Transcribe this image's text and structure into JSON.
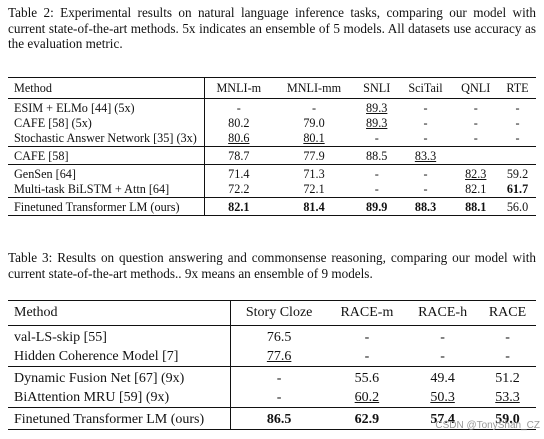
{
  "table2": {
    "caption": "Table 2: Experimental results on natural language inference tasks, comparing our model with current state-of-the-art methods. 5x indicates an ensemble of 5 models. All datasets use accuracy as the evaluation metric.",
    "headers": [
      "Method",
      "MNLI-m",
      "MNLI-mm",
      "SNLI",
      "SciTail",
      "QNLI",
      "RTE"
    ],
    "groups": [
      [
        {
          "method": "ESIM + ELMo [44] (5x)",
          "cells": [
            {
              "v": "-"
            },
            {
              "v": "-"
            },
            {
              "v": "89.3",
              "u": true
            },
            {
              "v": "-"
            },
            {
              "v": "-"
            },
            {
              "v": "-"
            }
          ]
        },
        {
          "method": "CAFE [58] (5x)",
          "cells": [
            {
              "v": "80.2"
            },
            {
              "v": "79.0"
            },
            {
              "v": "89.3",
              "u": true
            },
            {
              "v": "-"
            },
            {
              "v": "-"
            },
            {
              "v": "-"
            }
          ]
        },
        {
          "method": "Stochastic Answer Network [35] (3x)",
          "cells": [
            {
              "v": "80.6",
              "u": true
            },
            {
              "v": "80.1",
              "u": true
            },
            {
              "v": "-"
            },
            {
              "v": "-"
            },
            {
              "v": "-"
            },
            {
              "v": "-"
            }
          ]
        }
      ],
      [
        {
          "method": "CAFE [58]",
          "cells": [
            {
              "v": "78.7"
            },
            {
              "v": "77.9"
            },
            {
              "v": "88.5"
            },
            {
              "v": "83.3",
              "u": true
            },
            {
              "v": ""
            },
            {
              "v": ""
            }
          ]
        }
      ],
      [
        {
          "method": "GenSen [64]",
          "cells": [
            {
              "v": "71.4"
            },
            {
              "v": "71.3"
            },
            {
              "v": "-"
            },
            {
              "v": "-"
            },
            {
              "v": "82.3",
              "u": true
            },
            {
              "v": "59.2"
            }
          ]
        },
        {
          "method": "Multi-task BiLSTM + Attn [64]",
          "cells": [
            {
              "v": "72.2"
            },
            {
              "v": "72.1"
            },
            {
              "v": "-"
            },
            {
              "v": "-"
            },
            {
              "v": "82.1"
            },
            {
              "v": "61.7",
              "b": true
            }
          ]
        }
      ],
      [
        {
          "method": "Finetuned Transformer LM (ours)",
          "cells": [
            {
              "v": "82.1",
              "b": true
            },
            {
              "v": "81.4",
              "b": true
            },
            {
              "v": "89.9",
              "b": true
            },
            {
              "v": "88.3",
              "b": true
            },
            {
              "v": "88.1",
              "b": true
            },
            {
              "v": "56.0"
            }
          ]
        }
      ]
    ]
  },
  "table3": {
    "caption": "Table 3: Results on question answering and commonsense reasoning, comparing our model with current state-of-the-art methods.. 9x means an ensemble of 9 models.",
    "headers": [
      "Method",
      "Story Cloze",
      "RACE-m",
      "RACE-h",
      "RACE"
    ],
    "groups": [
      [
        {
          "method": "val-LS-skip [55]",
          "cells": [
            {
              "v": "76.5"
            },
            {
              "v": "-"
            },
            {
              "v": "-"
            },
            {
              "v": "-"
            }
          ]
        },
        {
          "method": "Hidden Coherence Model [7]",
          "cells": [
            {
              "v": "77.6",
              "u": true
            },
            {
              "v": "-"
            },
            {
              "v": "-"
            },
            {
              "v": "-"
            }
          ]
        }
      ],
      [
        {
          "method": "Dynamic Fusion Net [67] (9x)",
          "cells": [
            {
              "v": "-"
            },
            {
              "v": "55.6"
            },
            {
              "v": "49.4"
            },
            {
              "v": "51.2"
            }
          ]
        },
        {
          "method": "BiAttention MRU [59] (9x)",
          "cells": [
            {
              "v": "-"
            },
            {
              "v": "60.2",
              "u": true
            },
            {
              "v": "50.3",
              "u": true
            },
            {
              "v": "53.3",
              "u": true
            }
          ]
        }
      ],
      [
        {
          "method": "Finetuned Transformer LM (ours)",
          "cells": [
            {
              "v": "86.5",
              "b": true
            },
            {
              "v": "62.9",
              "b": true
            },
            {
              "v": "57.4",
              "b": true
            },
            {
              "v": "59.0",
              "b": true
            }
          ]
        }
      ]
    ]
  },
  "watermark": "CSDN @TonyShan_CZ"
}
